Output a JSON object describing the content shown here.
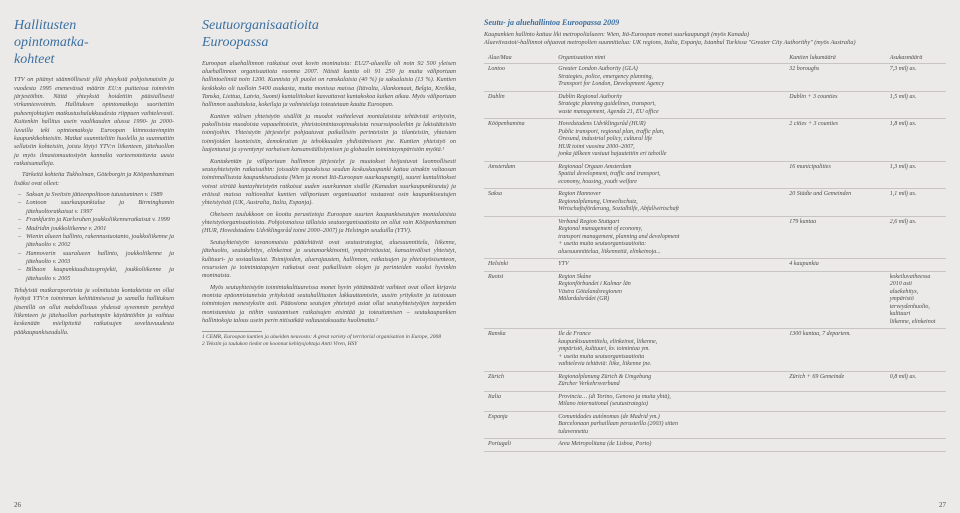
{
  "left": {
    "title_l1": "Hallitusten",
    "title_l2": "opintomatka-",
    "title_l3": "kohteet",
    "p1": "YTV on pitänyt säännöllisesti yllä yhteyksiä pohjoismaisiin ja vuodesta 1995 enenevässä määrin EU:n puitteissa toimiviin järjestöihin. Näitä yhteyksiä hoidettiin pääsiallisesti virkamiesvoimin. Hallituksen opintomatkoja suoritettiin puheenjohtajien matkustushalukkuudesta riippuen vaihtelevasti. Kuitenkin hallitus usein vaalikauden alussa 1990- ja 2000- luvuilla teki opintomatkoja Euroopan kiinnostavimpiin kaupunkikohteisiin. Matkat suunniteltiin huolella ja suunnattiin sellaisiin kohteisiin, joista löytyi YTV:n liikenteen, jätehuollon ja myös ilmastomuutostyön kannalta varteenotettavia uusia ratkaisumalleja.",
    "p2": "Tärkeitä kohteita Tukholman, Göteborgin ja Kööpenhaminan lisäksi ovat olleet:",
    "b1": "Saksan ja Sveitsin jätteenpolttoon tutustuminen v. 1989",
    "b2": "Lontoon suurkaupunkialue ja Birminghamin jätehuoltoratkaisut v. 1997",
    "b3": "Frankfurtin ja Karlsruhen joukkoliikenneratkaisut v. 1999",
    "b4": "Madridin joukkoliikenne v. 2001",
    "b5": "Wienin alueen hallinto, rakennustuotanto, joukkoliikenne ja jätehuolto v. 2002",
    "b6": "Hannoverin suuralueen hallinto, joukkoliikenne ja jätehuolto v. 2003",
    "b7": "Bilbaon kaupunkiuudistusprojekti, joukkoliikenne ja jätehuolto v. 2005",
    "p3": "Tehdyistä matkaraporteista ja solmituista kontakteista on ollut hyötyä YTV:n toiminnan kehittämisessä ja samalla hallituksen jäsenillä on ollut mahdollisuus yhdessä syvemmin perehtyä liikenteen ja jätehuollon parhaimpiin käytäntöihin ja vaihtaa keskenään mielipiteitä ratkaisujen soveltuvuudesta pääkaupunkiseudulla.",
    "pagenum": "26"
  },
  "mid": {
    "title_l1": "Seutuorganisaatioita",
    "title_l2": "Euroopassa",
    "p1": "Euroopan aluehallinnon ratkaisut ovat kovin moninaisia: EU27-alueella oli noin 92 500 yleisen aluehallinnon organisaatiota vuonna 2007. Näistä kuntia oli 91 250 ja muita väliportaan hallintoelimiä noin 1200. Kunnista yli puolet on ranskalaisia (40 %) ja saksalaisia (13 %). Kuntien keskikoko oli tuolloin 5400 asukasta, mutta monissa maissa (Itävalta, Alankomaat, Belgia, Kreikka, Tanska, Liettua, Latvia, Suomi) kuntaliitokset kasvattavat kuntakokoa kaiken aikaa. Myös väliportaan hallinnon uudistuksia, kokeiluja ja valmisteluja toteutetaan kautta Euroopan.",
    "p2": "Kuntien välisen yhteistyön sisällöt ja muodot vaihtelevat monialaisista tehtävistä erityisiin, pakollisista muodoista vapaaehtoisiin, yhteistoimintasopimuksista resurssipooleihin ja lakisääteisiin toimijoihin. Yhteistyön järjestelyt pohjautuvat paikallisiin perinteisiin ja tilanteisiin, yhteisten toimijoiden luonteisiin, demokratian ja tehokkuuden yhdistämiseen jne. Kuntien yhteistyö on laajentunut ja syventynyt varhaisen kansanväälistymisen ja globaalin toimintaympäristön myötä.¹",
    "p3": "Kuntakentän ja väliportaan hallinnon järjestelyt ja muutokset heijastuvat luonnollisesti seutuyhteistyön ratkaisuihin: joissakin tapauksissa seudun keskuskaupunki kattaa ainakin valtaosan toiminnallisesta kaupunkiseudusta (Wien ja monet Itä-Euroopan suurkaupungit), suuret kuntaliitokset voivat siirtää kuntayhteistyön ratkaisut uuden suurkunnan sisälle (Kanadan suurkaupunkiseutu) ja eräissä maissa valtiovaltai kuntien väliportaan organisaatiot vastaavat osin kaupunkiseutujen yhteistyöstä (UK, Australia, Italia, Espanja).",
    "p4": "Oheiseen taulukkoon on koottu perustietoja Euroopan suurten kaupunkiseutujen monialaisista yhteistyöorganisaatioista. Pohjoismaissa tällaisia seutuorganisaatioita on ollut vain Kööpenhaminan (HUR, Hovedstadens Udviklingsråd toimi 2000–2007) ja Helsingin seuduilla (YTV).",
    "p5": "Seutuyhteistyön tavanomaisia päätehtäviä ovat seutustrategiat, aluesuunnittelu, liikenne, jätehuolto, seutukehitys, elinkeinot ja seutumarkkinointi, ympäristöasiat, kansainväliset yhteistyt, kulttuuri- ja sosiaaliasiat. Toimijoiden, aluerajausten, hallinnon, ratkaisujen ja yhteistyösisenteon, resurssien ja toimintatapojen ratkaisut ovat paikallisten olojen ja perinteiden vuoksi hyvinkin moninaisia.",
    "p6": "Myös seutuyhteistyön toimintakulttuureissa monet hyvin yöttämäävät vaihteet ovat olleet kirjavia monista epäonnistuneista yrityksistä seutuhallitusten lakkauttamisiin, uusiin yrityksiin ja taistouan toimintojen menestyksiin asti. Pääosiona seutujen yhteistyö asiat ollut seutuyhteistyöjen tarpeiden monistumista ja niihin vastaamisen ratkaisujen etsintää ja toteuttamisen – seutukaupunkien hallintokoja talous usein perin nitisatkää valtaustaksuutta huolimatta.²",
    "foot1": "1    CEMR, Euroopan kuntien ja alueiden neuvosto: A great variety of territorial organisation in Europe, 2008",
    "foot2": "2    Tekstin ja taulukon tiedot on koonnut kehitysjohtaja Antti Viren, HSY"
  },
  "right": {
    "title": "Seutu- ja aluehallintoa Euroopassa 2009",
    "sub1": "Kaupunkien hallinto kattaa liki metropolialueen: Wien, Itä-Euroopan monet suurkaupungit (myös Kanada)",
    "sub2": "Alueviivastot/-hallinnot ohjaavat metropolien suunnittelua: UK regions, Italia, Espanja, Istanbul Turkissa \"Greater City Authorithy\" (myös Australia)",
    "hdr": {
      "c1": "Alue/Maa",
      "c2": "Organisaation nimi",
      "c3": "Kuntien lukumäärä",
      "c4": "Asukasmäärä"
    },
    "rows": [
      {
        "c1": "Lontoo",
        "c2": [
          "Greater London Authority (GLA)",
          "Strategies, police, emergency planning,",
          "Transport for London, Development Agency"
        ],
        "c3": "32 boroughs",
        "c4": "7,3 milj as."
      },
      {
        "c1": "Dublin",
        "c2": [
          "Dublin Regional Authority",
          "Strategic planning guidelines, transport,",
          "waste management, Agenda 21, EU office"
        ],
        "c3": "Dublin + 3 counties",
        "c4": "1,5 milj as."
      },
      {
        "c1": "Kööpenhamina",
        "c2": [
          "Hovedstadens Udviklingsråd (HUR)",
          "Public transport, regional plan, traffic plan,",
          "Öresund, industrial policy, cultural life",
          "HUR toimi vuosina 2000–2007,",
          "jonka jälkeen vastuut hajautettiin eri tahoille"
        ],
        "c3": "2 cities + 3 counties",
        "c4": "1,8 milj as."
      },
      {
        "c1": "Amsterdam",
        "c2": [
          "Regionaal Orgaan Amsterdam",
          "Spatial development, traffic and transport,",
          "economy, housing, youth welfare"
        ],
        "c3": "16 municipalities",
        "c4": "1,3 milj as."
      },
      {
        "c1": "Saksa",
        "c2": [
          "Region Hannover",
          "Regionalplanung, Umweltschutz,",
          "Wirtschaftsförderung, Sozialhilfe, Abfallwirtschaft"
        ],
        "c3": "20 Städte und Gemeinden",
        "c4": "1,1 milj as."
      },
      {
        "c1": "",
        "c2": [
          "Verband Region Stuttgart",
          "Regional management of economy,",
          "transport management, planning and development",
          "+ useita muita seutuorganisaatioita:",
          "aluesuunnittelua, liikennettä, elinkeinoja..."
        ],
        "c3": "179 kuntaa",
        "c4": "2,6 milj as."
      },
      {
        "c1": "Helsinki",
        "c2": [
          "YTV"
        ],
        "c3": "4 kaupunkia",
        "c4": ""
      },
      {
        "c1": "Ruotsi",
        "c2": [
          "Region Skåne",
          "Regionförbundet i Kalmar län",
          "Västra Götalandsregionen",
          "Mälardalsrådet (GR)"
        ],
        "c3": "",
        "c4": "kokeiluvaiheessa 2010 asti\naluekehitys, ympäristö\nterveydenhuolto, kulttuuri\nliikenne, elinkeinot"
      },
      {
        "c1": "Ranska",
        "c2": [
          "Ile de France",
          "kaupunkisuunnittelu, elinkeinot, liikenne,",
          "ympäristö, kulttuuri, kv. toimintaa ym.",
          "+ useita muita seutuorganisaatioita",
          "vaihtelevia tehtäviä: liike, liikenne jne."
        ],
        "c3": "1300 kuntaa, 7 departem.",
        "c4": ""
      },
      {
        "c1": "Zürich",
        "c2": [
          "Regionalplanung Zürich & Umgebung",
          "Zürcher Verkehrsverbund"
        ],
        "c3": "Zürich + 69 Gemeinde",
        "c4": "0,8 milj as."
      },
      {
        "c1": "Italia",
        "c2": [
          "Provincia… (di Torino, Genova ja muita yhtä),",
          "Milano international (seutustrategia)"
        ],
        "c3": "",
        "c4": ""
      },
      {
        "c1": "Espanja",
        "c2": [
          "Comunidades autónomas (de Madrid ym.)",
          "Barcelonaan parhaillaan perusteilla (2003) sitten",
          "tulavennettu"
        ],
        "c3": "",
        "c4": ""
      },
      {
        "c1": "Portugali",
        "c2": [
          "Area Metropolitana (de Lisboa, Porto)"
        ],
        "c3": "",
        "c4": ""
      }
    ],
    "pagenum": "27"
  }
}
